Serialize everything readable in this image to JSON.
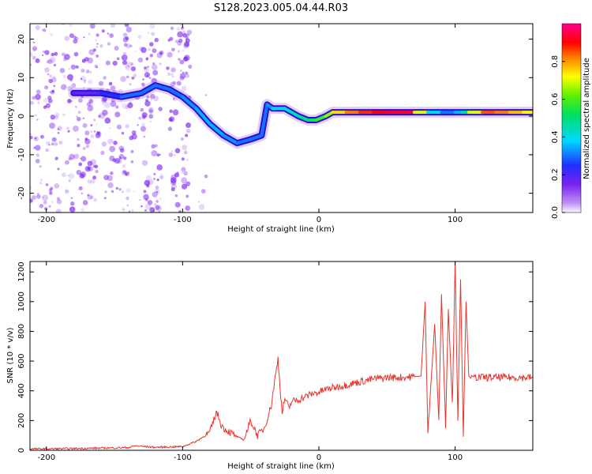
{
  "title": "S128.2023.005.04.44.R03",
  "colors": {
    "snr_line": "#e8352e",
    "spectrum_base": "#7a20f0",
    "axis": "#000000",
    "background": "#ffffff"
  },
  "chart_data": [
    {
      "type": "heatmap",
      "xlabel": "Height of straight line (km)",
      "ylabel": "Frequency (Hz)",
      "xlim": [
        -212,
        157
      ],
      "ylim": [
        -25,
        24
      ],
      "xticks": [
        -200,
        -100,
        0,
        100
      ],
      "yticks": [
        -20,
        -10,
        0,
        10,
        20
      ],
      "grid": false,
      "colorbar": {
        "label": "Normalized spectral amplitude",
        "range": [
          0,
          1
        ],
        "ticks": [
          0.0,
          0.2,
          0.4,
          0.6,
          0.8
        ],
        "colormap": "rainbow (violet-blue-cyan-green-yellow-red-magenta)"
      },
      "trace": {
        "x": [
          -180,
          -160,
          -145,
          -130,
          -120,
          -110,
          -100,
          -90,
          -80,
          -70,
          -60,
          -50,
          -42,
          -38,
          -34,
          -25,
          -15,
          -8,
          -2,
          5,
          10,
          20,
          30,
          40,
          50,
          60,
          70,
          80,
          90,
          100,
          105,
          110,
          120,
          130,
          140,
          150,
          157
        ],
        "frequency": [
          6,
          6,
          5,
          6,
          8,
          7,
          5,
          2,
          -2,
          -5,
          -7,
          -6,
          -5,
          3,
          2,
          2,
          0,
          -1,
          -1,
          0,
          1,
          1,
          1,
          1,
          1,
          1,
          1,
          1,
          1,
          1,
          1,
          1,
          1,
          1,
          1,
          1,
          1
        ],
        "amplitude": [
          0.15,
          0.2,
          0.3,
          0.3,
          0.3,
          0.3,
          0.3,
          0.35,
          0.35,
          0.35,
          0.3,
          0.3,
          0.3,
          0.3,
          0.35,
          0.4,
          0.45,
          0.5,
          0.55,
          0.6,
          0.7,
          0.8,
          0.85,
          0.9,
          0.9,
          0.95,
          0.9,
          0.5,
          0.3,
          0.3,
          0.4,
          0.55,
          0.85,
          0.85,
          0.8,
          0.75,
          0.7
        ]
      }
    },
    {
      "type": "line",
      "xlabel": "Height of straight line (km)",
      "ylabel": "SNR (10 * v/v)",
      "xlim": [
        -212,
        157
      ],
      "ylim": [
        0,
        1270
      ],
      "xticks": [
        -200,
        -100,
        0,
        100
      ],
      "yticks": [
        0,
        200,
        400,
        600,
        800,
        1000,
        1200
      ],
      "grid": false,
      "series": [
        {
          "x": [
            -212,
            -200,
            -180,
            -160,
            -140,
            -135,
            -120,
            -100,
            -90,
            -80,
            -75,
            -72,
            -70,
            -65,
            -60,
            -55,
            -50,
            -45,
            -40,
            -35,
            -30,
            -27,
            -25,
            -22,
            -20,
            -15,
            -10,
            -5,
            0,
            5,
            10,
            20,
            30,
            40,
            50,
            60,
            70,
            75,
            78,
            80,
            85,
            88,
            90,
            93,
            95,
            98,
            100,
            102,
            104,
            106,
            108,
            110,
            112,
            115,
            120,
            130,
            140,
            150,
            157
          ],
          "values": [
            10,
            10,
            12,
            15,
            18,
            30,
            20,
            25,
            60,
            120,
            260,
            180,
            150,
            120,
            90,
            70,
            200,
            100,
            150,
            300,
            620,
            250,
            350,
            280,
            330,
            340,
            360,
            380,
            390,
            410,
            420,
            440,
            460,
            480,
            490,
            490,
            495,
            500,
            1000,
            120,
            850,
            200,
            1050,
            150,
            950,
            300,
            1270,
            200,
            1150,
            100,
            1000,
            500,
            480,
            490,
            490,
            490,
            490,
            490,
            490
          ]
        }
      ]
    }
  ]
}
